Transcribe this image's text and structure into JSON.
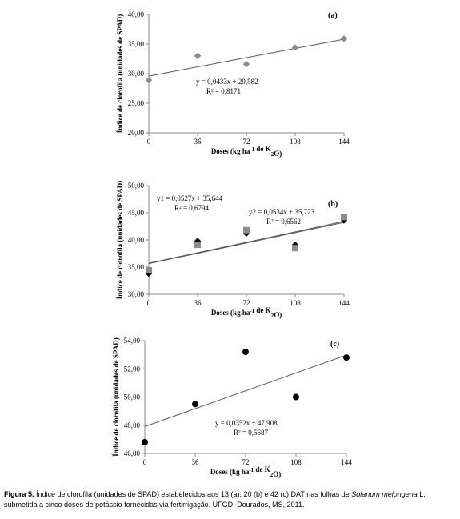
{
  "chart_data": [
    {
      "type": "scatter",
      "panel": "(a)",
      "xlabel": "Doses (kg ha-1 de K2O)",
      "ylabel": "Índice de clorofila (unidades de SPAD)",
      "xticks": [
        "0",
        "36",
        "72",
        "108",
        "144"
      ],
      "yticks": [
        "20,00",
        "25,00",
        "30,00",
        "35,00",
        "40,00"
      ],
      "ylim": [
        20,
        40
      ],
      "xlim": [
        0,
        144
      ],
      "series": [
        {
          "marker": "diamond",
          "color": "#8c8c8c",
          "x": [
            0,
            36,
            72,
            108,
            144
          ],
          "y": [
            28.9,
            33.0,
            31.6,
            34.4,
            35.9
          ],
          "trend": {
            "slope": 0.0433,
            "intercept": 29.582
          }
        }
      ],
      "annotations": [
        "y = 0,0433x + 29,582",
        "R² = 0,8171"
      ]
    },
    {
      "type": "scatter",
      "panel": "(b)",
      "xlabel": "Doses (kg ha-1 de K2O)",
      "ylabel": "Índice de clorofila (unidades de SPAD)",
      "xticks": [
        "0",
        "36",
        "72",
        "108",
        "144"
      ],
      "yticks": [
        "30,00",
        "35,00",
        "40,00",
        "45,00",
        "50,00"
      ],
      "ylim": [
        30,
        50
      ],
      "xlim": [
        0,
        144
      ],
      "series": [
        {
          "marker": "diamond",
          "color": "#000000",
          "x": [
            0,
            36,
            72,
            108,
            144
          ],
          "y": [
            33.8,
            39.8,
            41.2,
            39.1,
            43.6
          ],
          "trend": {
            "slope": 0.0527,
            "intercept": 35.644
          }
        },
        {
          "marker": "square",
          "color": "#8c8c8c",
          "x": [
            0,
            36,
            72,
            108,
            144
          ],
          "y": [
            34.4,
            39.1,
            41.8,
            38.5,
            44.2
          ],
          "trend": {
            "slope": 0.0534,
            "intercept": 35.723
          }
        }
      ],
      "annotations": [
        "y1 = 0,0527x + 35,644",
        "R² = 0,6794",
        "y2 = 0,0534x + 35,723",
        "R² = 0,6562"
      ]
    },
    {
      "type": "scatter",
      "panel": "(c)",
      "xlabel": "Doses (kg ha-1 de K2O)",
      "ylabel": "Índice de clorofila (unidades de SPAD)",
      "xticks": [
        "0",
        "36",
        "72",
        "108",
        "144"
      ],
      "yticks": [
        "46,00",
        "48,00",
        "50,00",
        "52,00",
        "54,00"
      ],
      "ylim": [
        46,
        54
      ],
      "xlim": [
        0,
        144
      ],
      "series": [
        {
          "marker": "circle",
          "color": "#000000",
          "x": [
            0,
            36,
            72,
            108,
            144
          ],
          "y": [
            46.8,
            49.5,
            53.2,
            50.0,
            52.8
          ],
          "trend": {
            "slope": 0.0352,
            "intercept": 47.908
          }
        }
      ],
      "annotations": [
        "y = 0,0352x + 47,908",
        "R² = 0,5687"
      ]
    }
  ],
  "caption": {
    "label": "Figura 5.",
    "text_before": " Índice de clorofila (unidades de SPAD) estabelecidos aos 13 (a), 20 (b) e 42 (c) DAT nas folhas de ",
    "species": "Solanum melongena",
    "text_after": " L. submetida a cinco doses de potássio fornecidas via fertirrigação. UFGD, Dourados, MS, 2011."
  }
}
